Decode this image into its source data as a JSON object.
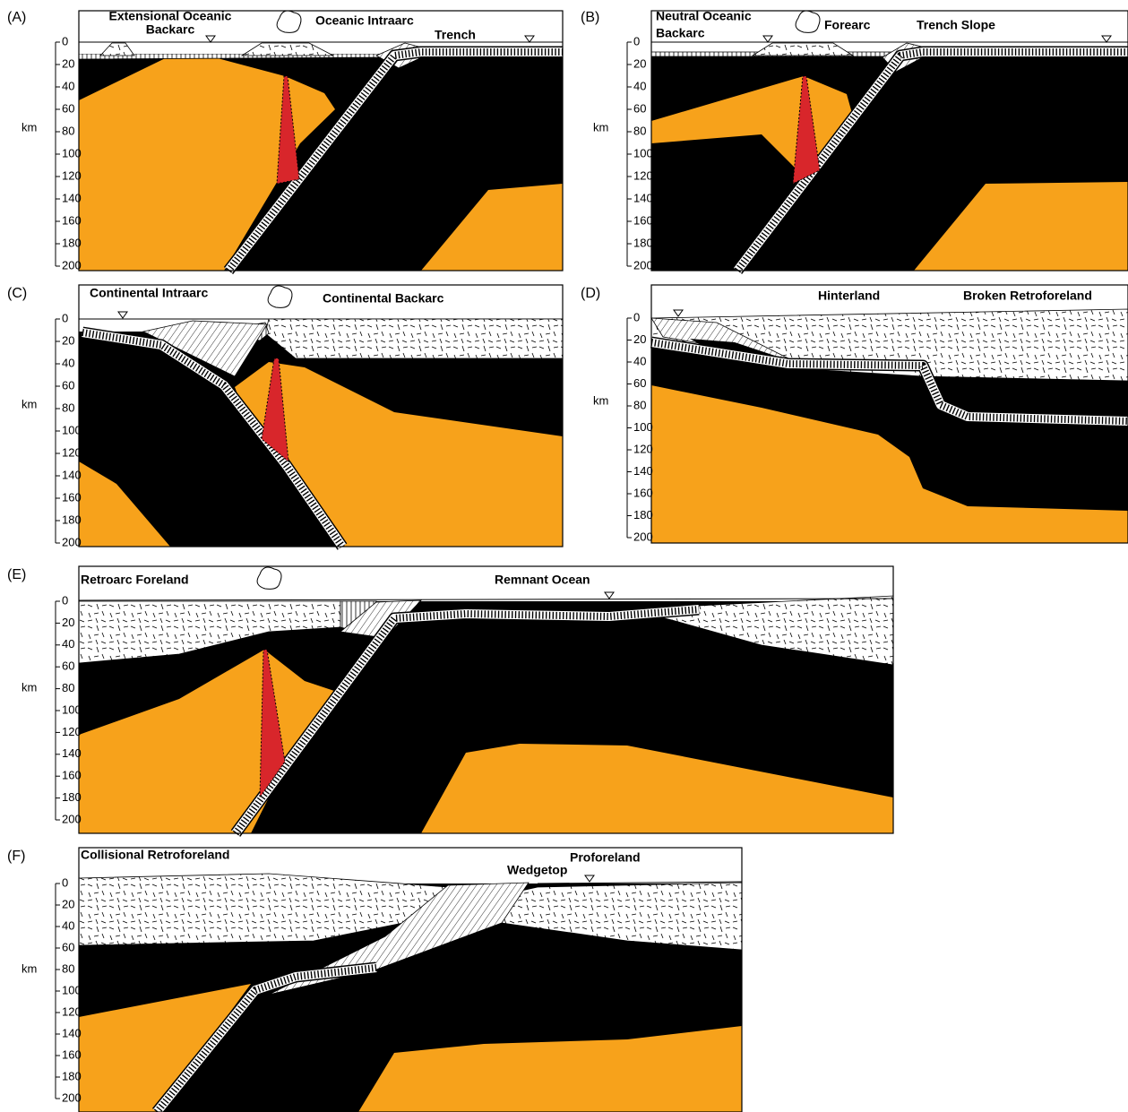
{
  "depth_axis": {
    "unit": "km",
    "ticks": [
      0,
      20,
      40,
      60,
      80,
      100,
      120,
      140,
      160,
      180,
      200
    ]
  },
  "panels": [
    {
      "letter": "(A)",
      "labels": [
        "Extensional Oceanic",
        "Backarc",
        "Oceanic Intraarc",
        "Trench"
      ]
    },
    {
      "letter": "(B)",
      "labels": [
        "Neutral Oceanic",
        "Backarc",
        "Forearc",
        "Trench Slope"
      ]
    },
    {
      "letter": "(C)",
      "labels": [
        "Continental Intraarc",
        "Continental Backarc"
      ]
    },
    {
      "letter": "(D)",
      "labels": [
        "Hinterland",
        "Broken Retroforeland"
      ]
    },
    {
      "letter": "(E)",
      "labels": [
        "Retroarc Foreland",
        "Remnant Ocean"
      ]
    },
    {
      "letter": "(F)",
      "labels": [
        "Collisional Retroforeland",
        "Proforeland",
        "Wedgetop"
      ]
    }
  ]
}
